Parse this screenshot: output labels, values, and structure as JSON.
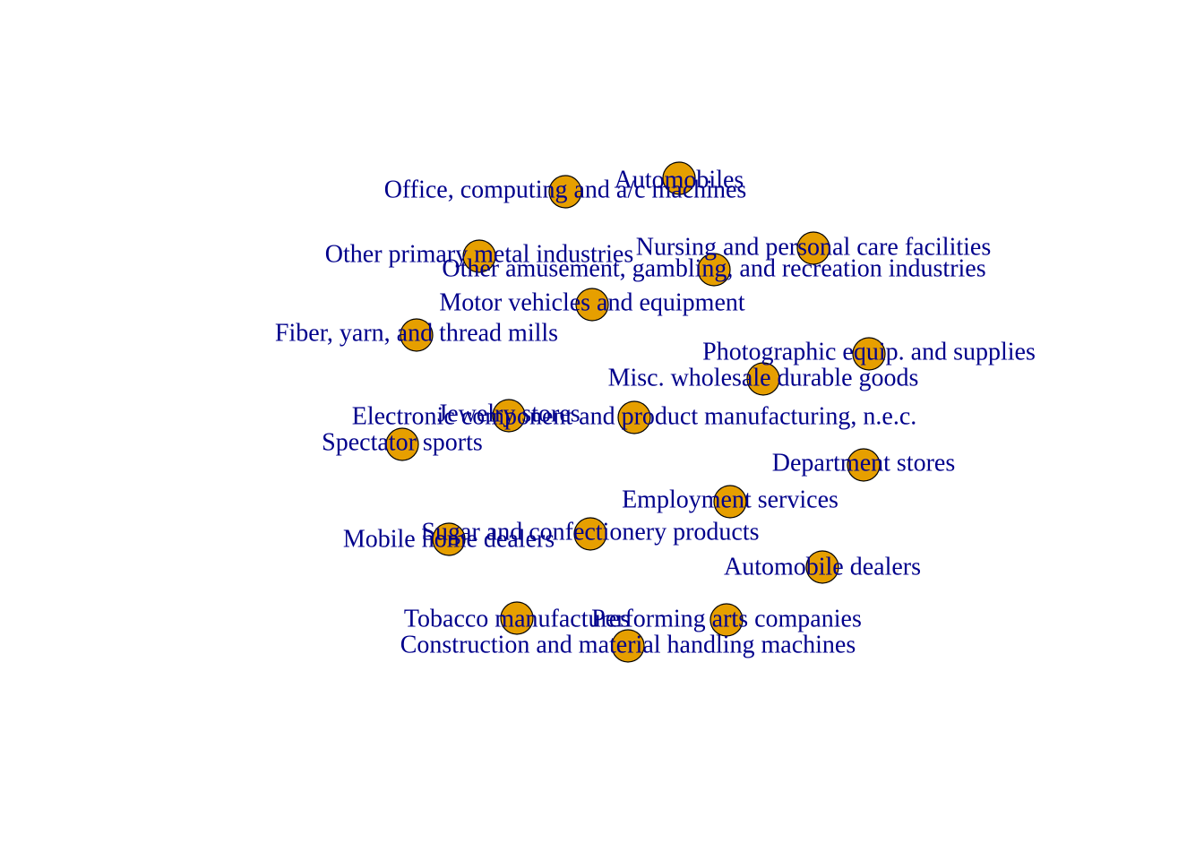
{
  "colors": {
    "node_fill": "#E69F00",
    "node_stroke": "#000000",
    "label_color": "#00008B",
    "background": "#FFFFFF"
  },
  "nodes": [
    {
      "id": "n1",
      "label": "Automobiles"
    },
    {
      "id": "n2",
      "label": "Office, computing and a/c machines"
    },
    {
      "id": "n3",
      "label": "Nursing and personal care facilities"
    },
    {
      "id": "n4",
      "label": "Other primary metal industries"
    },
    {
      "id": "n5",
      "label": "Other amusement, gambling, and recreation industries"
    },
    {
      "id": "n6",
      "label": "Motor vehicles and equipment"
    },
    {
      "id": "n7",
      "label": "Fiber, yarn, and thread mills"
    },
    {
      "id": "n8",
      "label": "Photographic equip. and supplies"
    },
    {
      "id": "n9",
      "label": "Misc. wholesale durable goods"
    },
    {
      "id": "n10",
      "label": "Jewelry stores"
    },
    {
      "id": "n11",
      "label": "Electronic component and product manufacturing, n.e.c."
    },
    {
      "id": "n12",
      "label": "Spectator sports"
    },
    {
      "id": "n13",
      "label": "Department stores"
    },
    {
      "id": "n14",
      "label": "Employment services"
    },
    {
      "id": "n15",
      "label": "Sugar and confectionery products"
    },
    {
      "id": "n16",
      "label": "Mobile home dealers"
    },
    {
      "id": "n17",
      "label": "Automobile dealers"
    },
    {
      "id": "n18",
      "label": "Tobacco manufactures"
    },
    {
      "id": "n19",
      "label": "Performing arts companies"
    },
    {
      "id": "n20",
      "label": "Construction and material handling machines"
    }
  ]
}
